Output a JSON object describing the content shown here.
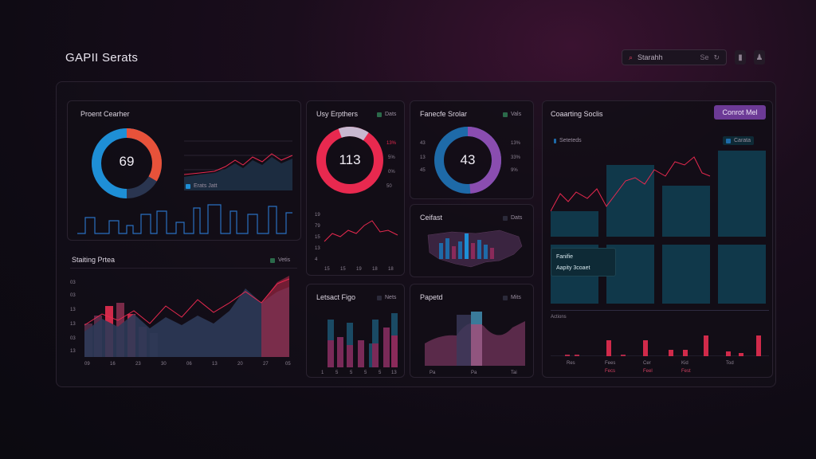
{
  "header": {
    "title": "GAPII Serats",
    "search_placeholder": "Starahh",
    "search_shortcut": "Se",
    "search_icon": "search-icon"
  },
  "panels": {
    "profit": {
      "title": "Proent Cearher",
      "donut_value": "69",
      "legend": "Erats Jatt"
    },
    "usage": {
      "title": "Usy Erpthers",
      "legend": "Dats",
      "donut_value": "113",
      "side_labels": [
        "13%",
        "5%",
        "0%",
        "50"
      ]
    },
    "factor": {
      "title": "Fanecfe Srolar",
      "legend": "Vals",
      "donut_value": "43",
      "left_labels": [
        "43",
        "13",
        "45"
      ],
      "right_labels": [
        "13%",
        "33%",
        "9%"
      ]
    },
    "compare": {
      "title": "Coaarting Soclis",
      "button": "Conrot Mel",
      "legend_left": "Seteteds",
      "legend_right": "Carata",
      "popup_line1": "Fanifie",
      "popup_line2": "Aapity 3coaet",
      "axis_label": "Actions",
      "x_labels": [
        "Res",
        "Fees",
        "Cer",
        "Fecs",
        "Kid",
        "Feel",
        "Tod",
        "Fest"
      ]
    },
    "starting": {
      "title": "Staiting Prtea",
      "legend": "Vetis",
      "y_labels": [
        "03",
        "03",
        "13",
        "13",
        "03",
        "13",
        "03",
        "03"
      ],
      "x_labels": [
        "09",
        "16",
        "23",
        "30",
        "06",
        "13",
        "20",
        "27",
        "05"
      ]
    },
    "latest": {
      "title": "Letsact Figo",
      "legend": "Nets",
      "x_labels": [
        "1",
        "5",
        "5",
        "5",
        "5",
        "13"
      ]
    },
    "central": {
      "title": "Ceifast",
      "legend": "Dats"
    },
    "panel_p": {
      "title": "Papetd",
      "legend": "Mits",
      "x_labels": [
        "Pa",
        "Pa",
        "Tai"
      ]
    },
    "usage_mini": {
      "y_labels": [
        "19",
        "79",
        "15",
        "13",
        "4"
      ],
      "x_labels": [
        "15",
        "15",
        "19",
        "18",
        "18"
      ]
    }
  },
  "colors": {
    "accent_red": "#e8294f",
    "accent_blue": "#1e8fd6",
    "accent_purple": "#8a4db0",
    "teal": "#1a4a5c",
    "bg": "#0f0b14"
  }
}
